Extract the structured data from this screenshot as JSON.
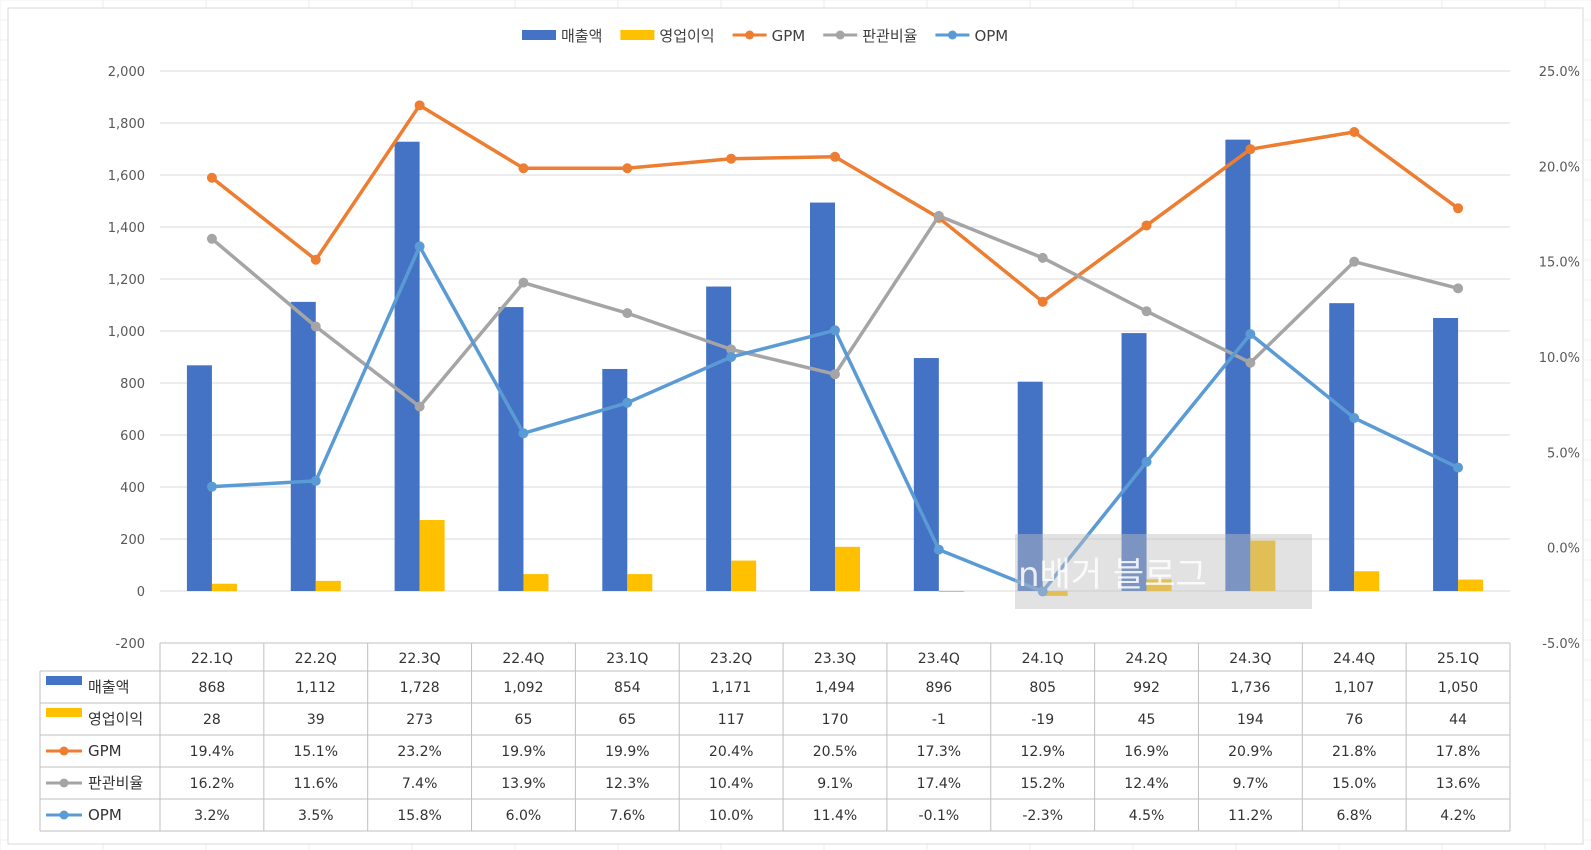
{
  "watermark": "n배거 블로그",
  "chart_data": {
    "type": "combo bar-line with data table",
    "categories": [
      "22.1Q",
      "22.2Q",
      "22.3Q",
      "22.4Q",
      "23.1Q",
      "23.2Q",
      "23.3Q",
      "23.4Q",
      "24.1Q",
      "24.2Q",
      "24.3Q",
      "24.4Q",
      "25.1Q"
    ],
    "y_left": {
      "min": -200,
      "max": 2000,
      "step": 200,
      "ticks": [
        "-200",
        "0",
        "200",
        "400",
        "600",
        "800",
        "1,000",
        "1,200",
        "1,400",
        "1,600",
        "1,800",
        "2,000"
      ]
    },
    "y_right": {
      "min": -5,
      "max": 25,
      "step": 5,
      "ticks": [
        "-5.0%",
        "0.0%",
        "5.0%",
        "10.0%",
        "15.0%",
        "20.0%",
        "25.0%"
      ]
    },
    "grid": true,
    "legend_position": "top",
    "series": [
      {
        "name": "매출액",
        "kind": "bar",
        "axis": "left",
        "color": "#4472C4",
        "values": [
          868,
          1112,
          1728,
          1092,
          854,
          1171,
          1494,
          896,
          805,
          992,
          1736,
          1107,
          1050
        ],
        "labels": [
          "868",
          "1,112",
          "1,728",
          "1,092",
          "854",
          "1,171",
          "1,494",
          "896",
          "805",
          "992",
          "1,736",
          "1,107",
          "1,050"
        ]
      },
      {
        "name": "영업이익",
        "kind": "bar",
        "axis": "left",
        "color": "#FFC000",
        "values": [
          28,
          39,
          273,
          65,
          65,
          117,
          170,
          -1,
          -19,
          45,
          194,
          76,
          44
        ],
        "labels": [
          "28",
          "39",
          "273",
          "65",
          "65",
          "117",
          "170",
          "-1",
          "-19",
          "45",
          "194",
          "76",
          "44"
        ]
      },
      {
        "name": "GPM",
        "kind": "line",
        "axis": "right",
        "color": "#ED7D31",
        "values": [
          19.4,
          15.1,
          23.2,
          19.9,
          19.9,
          20.4,
          20.5,
          17.3,
          12.9,
          16.9,
          20.9,
          21.8,
          17.8
        ],
        "labels": [
          "19.4%",
          "15.1%",
          "23.2%",
          "19.9%",
          "19.9%",
          "20.4%",
          "20.5%",
          "17.3%",
          "12.9%",
          "16.9%",
          "20.9%",
          "21.8%",
          "17.8%"
        ]
      },
      {
        "name": "판관비율",
        "kind": "line",
        "axis": "right",
        "color": "#A5A5A5",
        "values": [
          16.2,
          11.6,
          7.4,
          13.9,
          12.3,
          10.4,
          9.1,
          17.4,
          15.2,
          12.4,
          9.7,
          15.0,
          13.6
        ],
        "labels": [
          "16.2%",
          "11.6%",
          "7.4%",
          "13.9%",
          "12.3%",
          "10.4%",
          "9.1%",
          "17.4%",
          "15.2%",
          "12.4%",
          "9.7%",
          "15.0%",
          "13.6%"
        ]
      },
      {
        "name": "OPM",
        "kind": "line",
        "axis": "right",
        "color": "#5B9BD5",
        "values": [
          3.2,
          3.5,
          15.8,
          6.0,
          7.6,
          10.0,
          11.4,
          -0.1,
          -2.3,
          4.5,
          11.2,
          6.8,
          4.2
        ],
        "labels": [
          "3.2%",
          "3.5%",
          "15.8%",
          "6.0%",
          "7.6%",
          "10.0%",
          "11.4%",
          "-0.1%",
          "-2.3%",
          "4.5%",
          "11.2%",
          "6.8%",
          "4.2%"
        ]
      }
    ]
  }
}
